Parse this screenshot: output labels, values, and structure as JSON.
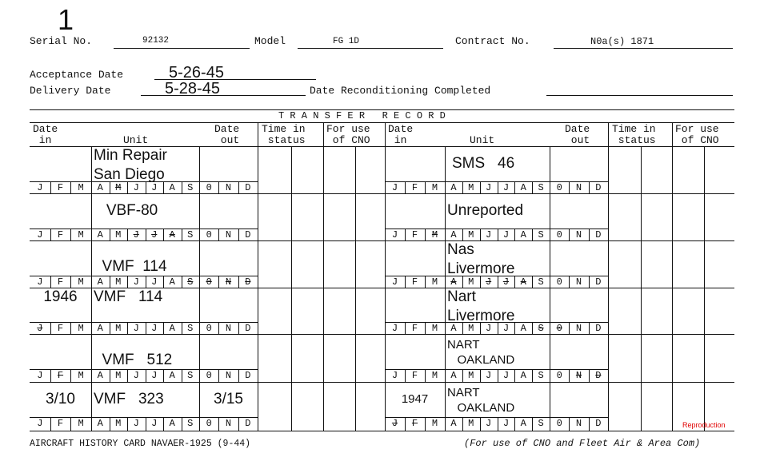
{
  "card_number": "1",
  "header": {
    "serial_label": "Serial No.",
    "serial_value": "92132",
    "model_label": "Model",
    "model_value": "FG 1D",
    "contract_label": "Contract No.",
    "contract_value": "N0a(s) 1871",
    "acceptance_label": "Acceptance Date",
    "acceptance_value": "5-26-45",
    "delivery_label": "Delivery Date",
    "delivery_value": "5-28-45",
    "recond_label": "Date Reconditioning Completed",
    "recond_value": ""
  },
  "transfer_title": "T R A N S F E R   R E C O R D",
  "columns": {
    "date_in": "Date\n in",
    "unit": "Unit",
    "date_out": "Date\n out",
    "time_in_status": "Time in\n status",
    "cno": "For use\n of CNO"
  },
  "months": [
    "J",
    "F",
    "M",
    "A",
    "M",
    "J",
    "J",
    "A",
    "S",
    "0",
    "N",
    "D"
  ],
  "left_rows": [
    {
      "date_in": "",
      "unit": "Min Repair\nSan Diego",
      "unit_align": "top",
      "date_out": "",
      "struck": [
        4
      ]
    },
    {
      "date_in": "",
      "unit": "   VBF-80",
      "unit_align": "middle",
      "date_out": "",
      "struck": [
        5,
        6,
        7
      ]
    },
    {
      "date_in": "",
      "unit": "  VMF  114",
      "unit_align": "bottom",
      "date_out": "",
      "struck": [
        8,
        9,
        10,
        11
      ]
    },
    {
      "date_in": "1946",
      "unit": "VMF   114",
      "unit_align": "top",
      "date_out": "",
      "struck": [
        0
      ]
    },
    {
      "date_in": "",
      "unit": "  VMF   512",
      "unit_align": "bottom",
      "date_out": "",
      "struck": [
        1
      ]
    },
    {
      "date_in": "3/10",
      "unit": "VMF   323",
      "unit_align": "middle",
      "date_out": "3/15",
      "struck": []
    }
  ],
  "right_rows": [
    {
      "date_in": "",
      "unit": "SMS   46",
      "unit_align": "middle",
      "date_out": "",
      "struck": []
    },
    {
      "date_in": "",
      "unit": "Unreported",
      "unit_align": "middle",
      "date_out": "",
      "struck": [
        2
      ]
    },
    {
      "date_in": "",
      "unit": "Nas\nLivermore",
      "unit_align": "top",
      "date_out": "",
      "struck": [
        3,
        5,
        6,
        7
      ]
    },
    {
      "date_in": "",
      "unit": "Nart\nLivermore",
      "unit_align": "top",
      "date_out": "",
      "struck": [
        8,
        9
      ]
    },
    {
      "date_in": "",
      "unit": "NART\n   OAKLAND",
      "unit_align": "small",
      "date_out": "",
      "struck": [
        10,
        11
      ]
    },
    {
      "date_in": "1947",
      "unit": "NART\n   OAKLAND",
      "unit_align": "small",
      "date_out": "",
      "struck": [
        0,
        1
      ]
    }
  ],
  "footer": {
    "left": "AIRCRAFT HISTORY CARD NAVAER-1925 (9-44)",
    "right": "(For use of CNO and Fleet Air & Area Com)",
    "stamp": "Reproduction"
  },
  "colors": {
    "ink": "#111111",
    "stamp": "#e00000"
  }
}
